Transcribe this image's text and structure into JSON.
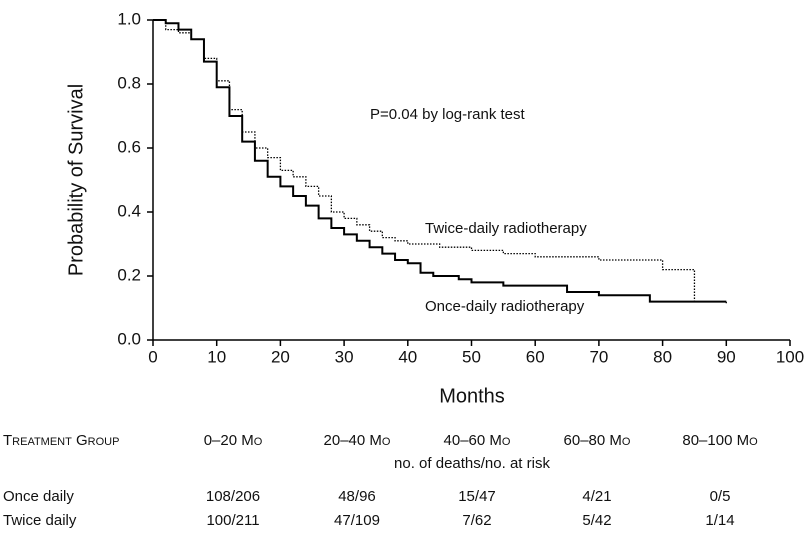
{
  "chart_data": {
    "type": "step",
    "xlabel": "Months",
    "ylabel": "Probability of Survival",
    "annotation": "P=0.04 by log-rank test",
    "xlim": [
      0,
      100
    ],
    "xticks": [
      0,
      10,
      20,
      30,
      40,
      50,
      60,
      70,
      80,
      90,
      100
    ],
    "ylim": [
      0,
      1
    ],
    "yticks": [
      {
        "value": 0,
        "label": "0.0"
      },
      0.2,
      0.4,
      0.6,
      0.8,
      {
        "value": 1,
        "label": "1.0"
      }
    ],
    "series": [
      {
        "name": "Once-daily radiotherapy",
        "color": "#000000",
        "style": "solid",
        "x": [
          0,
          2,
          4,
          6,
          8,
          10,
          12,
          14,
          16,
          18,
          20,
          22,
          24,
          26,
          28,
          30,
          32,
          34,
          36,
          38,
          40,
          42,
          44,
          46,
          48,
          50,
          55,
          60,
          65,
          70,
          75,
          78,
          90
        ],
        "values": [
          1.0,
          0.99,
          0.97,
          0.94,
          0.87,
          0.79,
          0.7,
          0.62,
          0.56,
          0.51,
          0.48,
          0.45,
          0.42,
          0.38,
          0.35,
          0.33,
          0.31,
          0.29,
          0.27,
          0.25,
          0.24,
          0.21,
          0.2,
          0.2,
          0.19,
          0.18,
          0.17,
          0.17,
          0.15,
          0.14,
          0.14,
          0.12,
          0.12
        ]
      },
      {
        "name": "Twice-daily radiotherapy",
        "color": "#000000",
        "style": "dotted",
        "x": [
          0,
          2,
          4,
          6,
          8,
          10,
          12,
          14,
          16,
          18,
          20,
          22,
          24,
          26,
          28,
          30,
          32,
          34,
          36,
          38,
          40,
          45,
          50,
          55,
          60,
          65,
          70,
          75,
          80,
          85,
          90
        ],
        "values": [
          1.0,
          0.97,
          0.96,
          0.94,
          0.88,
          0.81,
          0.72,
          0.65,
          0.6,
          0.57,
          0.53,
          0.51,
          0.48,
          0.45,
          0.4,
          0.38,
          0.36,
          0.34,
          0.32,
          0.31,
          0.3,
          0.29,
          0.28,
          0.27,
          0.26,
          0.26,
          0.25,
          0.25,
          0.22,
          0.12,
          0.11
        ]
      }
    ]
  },
  "table": {
    "header": [
      "Treatment Group",
      "0–20 Mo",
      "20–40 Mo",
      "40–60 Mo",
      "60–80 Mo",
      "80–100 Mo"
    ],
    "subheader": "no. of deaths/no. at risk",
    "rows": [
      [
        "Once daily",
        "108/206",
        "48/96",
        "15/47",
        "4/21",
        "0/5"
      ],
      [
        "Twice daily",
        "100/211",
        "47/109",
        "7/62",
        "5/42",
        "1/14"
      ]
    ]
  }
}
